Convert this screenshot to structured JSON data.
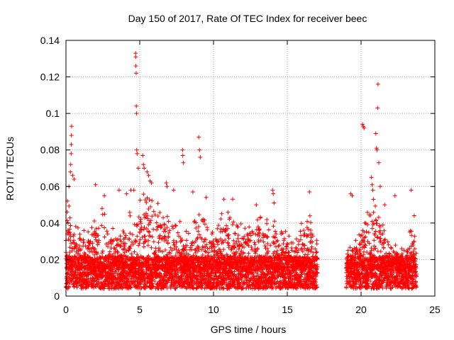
{
  "chart_data": {
    "type": "scatter",
    "title": "Day 150 of 2017, Rate Of TEC Index for receiver beec",
    "xlabel": "GPS time / hours",
    "ylabel": "ROTI / TECUs",
    "xlim": [
      0,
      25
    ],
    "ylim": [
      0,
      0.14
    ],
    "xticks": [
      0,
      5,
      10,
      15,
      20,
      25
    ],
    "yticks": [
      0,
      0.02,
      0.04,
      0.06,
      0.08,
      0.1,
      0.12,
      0.14
    ],
    "xtick_labels": [
      "0",
      "5",
      "10",
      "15",
      "20",
      "25"
    ],
    "ytick_labels": [
      "0",
      "0.02",
      "0.04",
      "0.06",
      "0.08",
      "0.1",
      "0.12",
      "0.14"
    ],
    "grid": true,
    "marker": "+",
    "color": "#ff0000",
    "series": [
      {
        "name": "ROTI",
        "segments": [
          {
            "t_start": 0.0,
            "t_end": 17.05,
            "spacing": 0.012
          },
          {
            "t_start": 19.0,
            "t_end": 23.75,
            "spacing": 0.012
          }
        ],
        "baseline": {
          "min": 0.004,
          "median": 0.015
        },
        "envelope_upper": [
          [
            0.0,
            0.045
          ],
          [
            0.3,
            0.052
          ],
          [
            0.5,
            0.044
          ],
          [
            1.0,
            0.038
          ],
          [
            1.5,
            0.036
          ],
          [
            2.0,
            0.046
          ],
          [
            2.5,
            0.052
          ],
          [
            3.0,
            0.04
          ],
          [
            3.5,
            0.036
          ],
          [
            4.0,
            0.04
          ],
          [
            4.5,
            0.05
          ],
          [
            5.0,
            0.055
          ],
          [
            5.5,
            0.06
          ],
          [
            6.0,
            0.052
          ],
          [
            6.5,
            0.05
          ],
          [
            7.0,
            0.044
          ],
          [
            7.5,
            0.046
          ],
          [
            8.0,
            0.038
          ],
          [
            8.5,
            0.036
          ],
          [
            9.0,
            0.05
          ],
          [
            9.5,
            0.04
          ],
          [
            10.0,
            0.036
          ],
          [
            10.5,
            0.048
          ],
          [
            11.0,
            0.05
          ],
          [
            11.5,
            0.042
          ],
          [
            12.0,
            0.04
          ],
          [
            12.5,
            0.046
          ],
          [
            13.0,
            0.048
          ],
          [
            13.5,
            0.044
          ],
          [
            14.0,
            0.05
          ],
          [
            14.5,
            0.035
          ],
          [
            15.0,
            0.036
          ],
          [
            15.5,
            0.03
          ],
          [
            16.0,
            0.042
          ],
          [
            16.5,
            0.05
          ],
          [
            17.0,
            0.03
          ],
          [
            19.0,
            0.035
          ],
          [
            19.5,
            0.03
          ],
          [
            20.0,
            0.036
          ],
          [
            20.5,
            0.05
          ],
          [
            21.0,
            0.055
          ],
          [
            21.5,
            0.04
          ],
          [
            22.0,
            0.03
          ],
          [
            22.5,
            0.028
          ],
          [
            23.0,
            0.026
          ],
          [
            23.5,
            0.042
          ],
          [
            23.75,
            0.03
          ]
        ],
        "outliers": [
          {
            "x": 0.1,
            "y": 0.052
          },
          {
            "x": 0.2,
            "y": 0.06
          },
          {
            "x": 0.3,
            "y": 0.068
          },
          {
            "x": 0.32,
            "y": 0.072
          },
          {
            "x": 0.35,
            "y": 0.078
          },
          {
            "x": 0.36,
            "y": 0.083
          },
          {
            "x": 0.37,
            "y": 0.088
          },
          {
            "x": 0.38,
            "y": 0.093
          },
          {
            "x": 0.45,
            "y": 0.066
          },
          {
            "x": 0.55,
            "y": 0.064
          },
          {
            "x": 2.0,
            "y": 0.061
          },
          {
            "x": 2.6,
            "y": 0.055
          },
          {
            "x": 3.6,
            "y": 0.058
          },
          {
            "x": 4.1,
            "y": 0.056
          },
          {
            "x": 4.4,
            "y": 0.058
          },
          {
            "x": 4.6,
            "y": 0.058
          },
          {
            "x": 4.72,
            "y": 0.133
          },
          {
            "x": 4.73,
            "y": 0.131
          },
          {
            "x": 4.74,
            "y": 0.126
          },
          {
            "x": 4.76,
            "y": 0.122
          },
          {
            "x": 4.77,
            "y": 0.104
          },
          {
            "x": 4.78,
            "y": 0.1
          },
          {
            "x": 4.8,
            "y": 0.08
          },
          {
            "x": 4.82,
            "y": 0.078
          },
          {
            "x": 4.9,
            "y": 0.07
          },
          {
            "x": 5.2,
            "y": 0.077
          },
          {
            "x": 5.25,
            "y": 0.072
          },
          {
            "x": 5.3,
            "y": 0.07
          },
          {
            "x": 5.5,
            "y": 0.068
          },
          {
            "x": 5.6,
            "y": 0.066
          },
          {
            "x": 5.7,
            "y": 0.063
          },
          {
            "x": 5.8,
            "y": 0.062
          },
          {
            "x": 6.8,
            "y": 0.062
          },
          {
            "x": 6.85,
            "y": 0.06
          },
          {
            "x": 7.3,
            "y": 0.058
          },
          {
            "x": 7.9,
            "y": 0.08
          },
          {
            "x": 7.92,
            "y": 0.077
          },
          {
            "x": 7.95,
            "y": 0.073
          },
          {
            "x": 8.6,
            "y": 0.057
          },
          {
            "x": 9.0,
            "y": 0.087
          },
          {
            "x": 9.05,
            "y": 0.08
          },
          {
            "x": 9.1,
            "y": 0.076
          },
          {
            "x": 9.5,
            "y": 0.054
          },
          {
            "x": 10.7,
            "y": 0.053
          },
          {
            "x": 11.3,
            "y": 0.053
          },
          {
            "x": 12.9,
            "y": 0.05
          },
          {
            "x": 14.0,
            "y": 0.058
          },
          {
            "x": 14.05,
            "y": 0.056
          },
          {
            "x": 14.1,
            "y": 0.051
          },
          {
            "x": 16.5,
            "y": 0.057
          },
          {
            "x": 19.3,
            "y": 0.056
          },
          {
            "x": 19.4,
            "y": 0.055
          },
          {
            "x": 20.1,
            "y": 0.094
          },
          {
            "x": 20.15,
            "y": 0.093
          },
          {
            "x": 20.2,
            "y": 0.092
          },
          {
            "x": 20.7,
            "y": 0.065
          },
          {
            "x": 20.75,
            "y": 0.061
          },
          {
            "x": 20.8,
            "y": 0.058
          },
          {
            "x": 21.0,
            "y": 0.089
          },
          {
            "x": 21.05,
            "y": 0.081
          },
          {
            "x": 21.08,
            "y": 0.08
          },
          {
            "x": 21.12,
            "y": 0.103
          },
          {
            "x": 21.15,
            "y": 0.116
          },
          {
            "x": 21.2,
            "y": 0.073
          },
          {
            "x": 21.3,
            "y": 0.06
          },
          {
            "x": 21.6,
            "y": 0.05
          },
          {
            "x": 22.3,
            "y": 0.055
          },
          {
            "x": 23.4,
            "y": 0.058
          },
          {
            "x": 23.6,
            "y": 0.044
          }
        ]
      }
    ]
  }
}
